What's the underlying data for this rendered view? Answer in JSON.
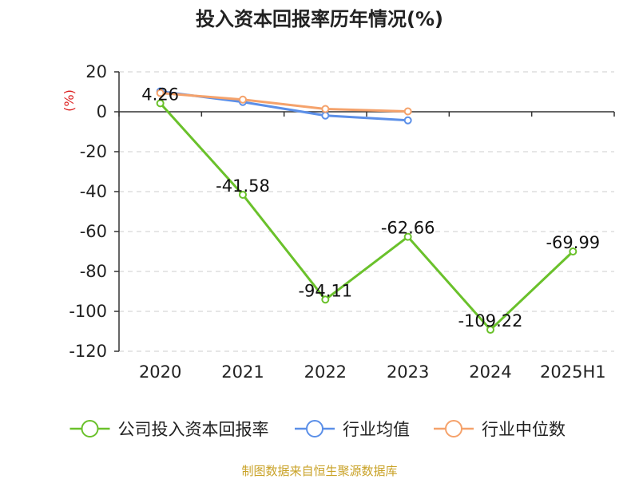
{
  "chart_data": {
    "type": "line",
    "title": "投入资本回报率历年情况(%)",
    "unit_label": "(%)",
    "categories": [
      "2020",
      "2021",
      "2022",
      "2023",
      "2024",
      "2025H1"
    ],
    "ylim": [
      -120,
      20
    ],
    "yticks": [
      20,
      0,
      -20,
      -40,
      -60,
      -80,
      -100,
      -120
    ],
    "grid": true,
    "legend_position": "bottom",
    "series": [
      {
        "name": "公司投入资本回报率",
        "color": "#6ac12b",
        "values": [
          4.26,
          -41.58,
          -94.11,
          -62.66,
          -109.22,
          -69.99
        ],
        "labels": [
          "4.26",
          "-41.58",
          "-94.11",
          "-62.66",
          "-109.22",
          "-69.99"
        ]
      },
      {
        "name": "行业均值",
        "color": "#5b8fe8",
        "values": [
          10.2,
          4.9,
          -1.9,
          -4.3,
          null,
          null
        ]
      },
      {
        "name": "行业中位数",
        "color": "#f5a26b",
        "values": [
          9.4,
          6.1,
          1.4,
          0.2,
          null,
          null
        ]
      }
    ]
  },
  "colors": {
    "unit": "#dd2222",
    "source": "#c9a227",
    "axis": "#333333",
    "grid": "#cccccc"
  },
  "source": "制图数据来自恒生聚源数据库"
}
